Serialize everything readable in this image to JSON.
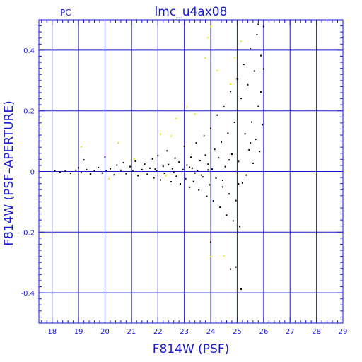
{
  "chart_data": {
    "type": "scatter",
    "title": "lmc_u4ax08",
    "corner_label": "PC",
    "xlabel": "F814W (PSF)",
    "ylabel": "F814W (PSF–APERTURE)",
    "xlim": [
      17.5,
      29
    ],
    "ylim": [
      -0.5,
      0.5
    ],
    "x_ticks": [
      "18",
      "19",
      "20",
      "21",
      "22",
      "23",
      "24",
      "25",
      "26",
      "27",
      "28",
      "29"
    ],
    "y_ticks": [
      "0.4",
      "0.2",
      "0",
      "-0.2",
      "-0.4"
    ],
    "grid": true,
    "colors": {
      "frame": "#1a1acc",
      "primary_points": "#000000",
      "secondary_points": "#e8e800"
    },
    "series": [
      {
        "color": "#000000",
        "points": [
          [
            18.1,
            0.002
          ],
          [
            18.3,
            -0.003
          ],
          [
            18.5,
            0.001
          ],
          [
            18.7,
            -0.006
          ],
          [
            18.9,
            0.004
          ],
          [
            19.0,
            0.012
          ],
          [
            19.1,
            -0.004
          ],
          [
            19.2,
            0.038
          ],
          [
            19.3,
            0.006
          ],
          [
            19.45,
            -0.008
          ],
          [
            19.6,
            0.002
          ],
          [
            19.75,
            0.013
          ],
          [
            19.9,
            -0.005
          ],
          [
            20.0,
            0.048
          ],
          [
            20.05,
            0.003
          ],
          [
            20.2,
            0.009
          ],
          [
            20.35,
            -0.011
          ],
          [
            20.45,
            0.021
          ],
          [
            20.6,
            0.004
          ],
          [
            20.7,
            0.029
          ],
          [
            20.8,
            -0.007
          ],
          [
            20.95,
            0.016
          ],
          [
            21.05,
            0.001
          ],
          [
            21.15,
            0.034
          ],
          [
            21.25,
            -0.014
          ],
          [
            21.4,
            0.006
          ],
          [
            21.5,
            0.024
          ],
          [
            21.6,
            -0.009
          ],
          [
            21.7,
            0.011
          ],
          [
            21.8,
            0.041
          ],
          [
            21.85,
            -0.021
          ],
          [
            21.95,
            0.003
          ],
          [
            22.0,
            0.052
          ],
          [
            22.1,
            -0.028
          ],
          [
            22.2,
            0.017
          ],
          [
            22.25,
            -0.006
          ],
          [
            22.35,
            0.068
          ],
          [
            22.4,
            0.023
          ],
          [
            22.5,
            -0.034
          ],
          [
            22.55,
            0.009
          ],
          [
            22.65,
            0.044
          ],
          [
            22.7,
            -0.016
          ],
          [
            22.8,
            0.031
          ],
          [
            22.85,
            -0.041
          ],
          [
            22.95,
            0.006
          ],
          [
            23.0,
            0.083
          ],
          [
            23.05,
            -0.024
          ],
          [
            23.1,
            0.021
          ],
          [
            23.2,
            -0.052
          ],
          [
            23.25,
            0.047
          ],
          [
            23.3,
            0.011
          ],
          [
            23.35,
            -0.033
          ],
          [
            23.45,
            0.094
          ],
          [
            23.5,
            0.003
          ],
          [
            23.55,
            -0.061
          ],
          [
            23.6,
            0.036
          ],
          [
            23.7,
            -0.018
          ],
          [
            23.75,
            0.117
          ],
          [
            23.8,
            0.054
          ],
          [
            23.85,
            -0.082
          ],
          [
            23.9,
            0.024
          ],
          [
            23.95,
            -0.044
          ],
          [
            24.0,
            0.142
          ],
          [
            24.05,
            0.008
          ],
          [
            24.1,
            -0.097
          ],
          [
            24.15,
            0.073
          ],
          [
            24.2,
            -0.022
          ],
          [
            24.25,
            0.186
          ],
          [
            24.3,
            0.045
          ],
          [
            24.35,
            -0.118
          ],
          [
            24.4,
            0.097
          ],
          [
            24.45,
            -0.051
          ],
          [
            24.5,
            0.213
          ],
          [
            24.55,
            0.016
          ],
          [
            24.6,
            -0.144
          ],
          [
            24.65,
            0.126
          ],
          [
            24.7,
            -0.074
          ],
          [
            24.75,
            0.264
          ],
          [
            24.8,
            0.057
          ],
          [
            24.85,
            -0.163
          ],
          [
            24.9,
            0.162
          ],
          [
            24.95,
            -0.096
          ],
          [
            25.0,
            0.305
          ],
          [
            25.05,
            0.033
          ],
          [
            25.1,
            -0.182
          ],
          [
            25.15,
            0.241
          ],
          [
            25.2,
            -0.038
          ],
          [
            25.25,
            0.353
          ],
          [
            25.3,
            0.124
          ],
          [
            25.35,
            -0.012
          ],
          [
            25.4,
            0.286
          ],
          [
            25.45,
            0.071
          ],
          [
            25.5,
            0.404
          ],
          [
            25.55,
            0.163
          ],
          [
            25.6,
            0.027
          ],
          [
            25.65,
            0.331
          ],
          [
            25.7,
            0.106
          ],
          [
            25.75,
            0.451
          ],
          [
            25.8,
            0.214
          ],
          [
            25.85,
            0.066
          ],
          [
            25.9,
            0.382
          ],
          [
            25.95,
            0.154
          ],
          [
            26.0,
            0.478
          ],
          [
            23.4,
            -0.005
          ],
          [
            23.65,
            -0.012
          ],
          [
            24.45,
            -0.029
          ],
          [
            24.7,
            0.038
          ],
          [
            25.05,
            -0.041
          ],
          [
            25.5,
            0.094
          ],
          [
            25.9,
            0.262
          ],
          [
            26.0,
            0.338
          ],
          [
            25.8,
            0.485
          ],
          [
            24.95,
            -0.315
          ],
          [
            24.75,
            -0.322
          ],
          [
            24.0,
            -0.233
          ],
          [
            25.15,
            -0.388
          ],
          [
            23.9,
            0.005
          ],
          [
            23.2,
            0.014
          ],
          [
            22.6,
            -0.001
          ],
          [
            21.9,
            0.008
          ]
        ]
      },
      {
        "color": "#e8e800",
        "points": [
          [
            19.1,
            0.081
          ],
          [
            20.15,
            -0.024
          ],
          [
            20.5,
            0.094
          ],
          [
            21.1,
            0.041
          ],
          [
            22.1,
            0.123
          ],
          [
            22.5,
            0.117
          ],
          [
            22.7,
            0.174
          ],
          [
            23.1,
            0.212
          ],
          [
            23.4,
            0.189
          ],
          [
            23.8,
            0.374
          ],
          [
            23.9,
            0.441
          ],
          [
            24.0,
            0.478
          ],
          [
            24.0,
            -0.281
          ],
          [
            24.25,
            0.333
          ],
          [
            24.5,
            -0.278
          ],
          [
            24.75,
            0.288
          ],
          [
            24.9,
            0.376
          ],
          [
            25.15,
            0.429
          ],
          [
            25.4,
            0.494
          ],
          [
            22.3,
            -0.014
          ]
        ]
      }
    ]
  }
}
